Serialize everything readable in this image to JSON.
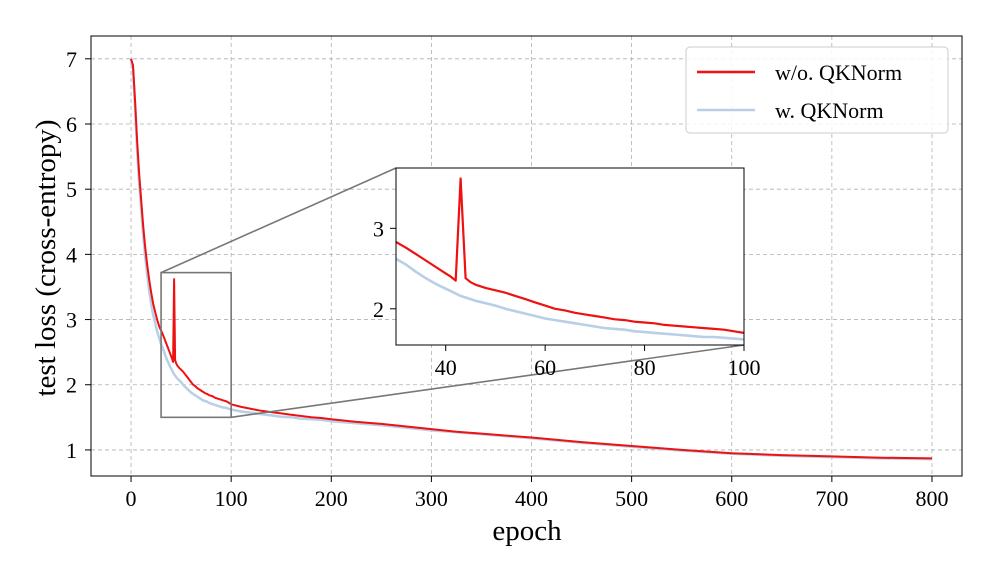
{
  "chart_data": {
    "type": "line",
    "xlabel": "epoch",
    "ylabel": "test loss (cross-entropy)",
    "xlim": [
      -40,
      830
    ],
    "ylim": [
      0.6,
      7.35
    ],
    "xticks": [
      0,
      100,
      200,
      300,
      400,
      500,
      600,
      700,
      800
    ],
    "yticks": [
      1,
      2,
      3,
      4,
      5,
      6,
      7
    ],
    "grid": true,
    "legend_position": "top-right",
    "series": [
      {
        "name": "w/o. QKNorm",
        "color": "#ee1111",
        "x": [
          0,
          2,
          4,
          6,
          8,
          10,
          12,
          14,
          16,
          18,
          20,
          22,
          24,
          26,
          28,
          30,
          32,
          34,
          36,
          38,
          40,
          41,
          42,
          43,
          44,
          45,
          46,
          48,
          50,
          52,
          54,
          56,
          58,
          60,
          62,
          64,
          66,
          68,
          70,
          72,
          74,
          76,
          78,
          80,
          82,
          84,
          86,
          88,
          90,
          92,
          94,
          96,
          98,
          100,
          110,
          120,
          130,
          140,
          150,
          160,
          170,
          180,
          190,
          200,
          225,
          250,
          275,
          300,
          325,
          350,
          375,
          400,
          450,
          500,
          550,
          600,
          650,
          700,
          750,
          800
        ],
        "values": [
          7.0,
          6.9,
          6.35,
          5.75,
          5.25,
          4.85,
          4.45,
          4.12,
          3.85,
          3.62,
          3.42,
          3.25,
          3.12,
          3.0,
          2.9,
          2.83,
          2.76,
          2.68,
          2.6,
          2.52,
          2.44,
          2.4,
          2.35,
          3.62,
          2.38,
          2.33,
          2.3,
          2.26,
          2.23,
          2.2,
          2.16,
          2.12,
          2.08,
          2.04,
          2.0,
          1.98,
          1.95,
          1.93,
          1.91,
          1.89,
          1.87,
          1.86,
          1.84,
          1.83,
          1.82,
          1.8,
          1.79,
          1.78,
          1.77,
          1.76,
          1.75,
          1.74,
          1.72,
          1.7,
          1.66,
          1.63,
          1.6,
          1.58,
          1.56,
          1.54,
          1.52,
          1.5,
          1.49,
          1.47,
          1.43,
          1.4,
          1.36,
          1.32,
          1.28,
          1.25,
          1.22,
          1.19,
          1.12,
          1.06,
          1.0,
          0.95,
          0.92,
          0.9,
          0.88,
          0.87
        ]
      },
      {
        "name": "w. QKNorm",
        "color": "#b8cfe6",
        "x": [
          0,
          2,
          4,
          6,
          8,
          10,
          12,
          14,
          16,
          18,
          20,
          22,
          24,
          26,
          28,
          30,
          32,
          34,
          36,
          38,
          40,
          41,
          42,
          43,
          44,
          45,
          46,
          48,
          50,
          52,
          54,
          56,
          58,
          60,
          62,
          64,
          66,
          68,
          70,
          72,
          74,
          76,
          78,
          80,
          82,
          84,
          86,
          88,
          90,
          92,
          94,
          96,
          98,
          100,
          110,
          120,
          130,
          140,
          150,
          160,
          170,
          180,
          190,
          200,
          225,
          250,
          275,
          300,
          325,
          350,
          375,
          400,
          450,
          500,
          550,
          600,
          650,
          700,
          750,
          800
        ],
        "values": [
          7.0,
          6.85,
          6.25,
          5.6,
          5.1,
          4.7,
          4.3,
          3.98,
          3.7,
          3.45,
          3.25,
          3.08,
          2.95,
          2.82,
          2.72,
          2.62,
          2.55,
          2.46,
          2.38,
          2.31,
          2.25,
          2.22,
          2.19,
          2.16,
          2.14,
          2.12,
          2.1,
          2.07,
          2.04,
          2.0,
          1.97,
          1.94,
          1.91,
          1.88,
          1.86,
          1.84,
          1.82,
          1.8,
          1.78,
          1.76,
          1.75,
          1.74,
          1.72,
          1.71,
          1.7,
          1.69,
          1.68,
          1.67,
          1.66,
          1.65,
          1.65,
          1.64,
          1.63,
          1.62,
          1.59,
          1.57,
          1.55,
          1.53,
          1.51,
          1.5,
          1.48,
          1.47,
          1.46,
          1.44,
          1.41,
          1.38,
          1.34,
          1.3,
          1.27,
          1.24,
          1.21,
          1.18,
          1.11,
          1.05,
          0.99,
          0.94,
          0.91,
          0.89,
          0.87,
          0.86
        ]
      }
    ],
    "inset": {
      "xlim": [
        30,
        100
      ],
      "ylim": [
        1.55,
        3.75
      ],
      "xticks": [
        40,
        60,
        80,
        100
      ],
      "yticks": [
        2,
        3
      ],
      "zoom_box": {
        "x": [
          30,
          100
        ],
        "y": [
          1.5,
          3.72
        ]
      }
    }
  }
}
